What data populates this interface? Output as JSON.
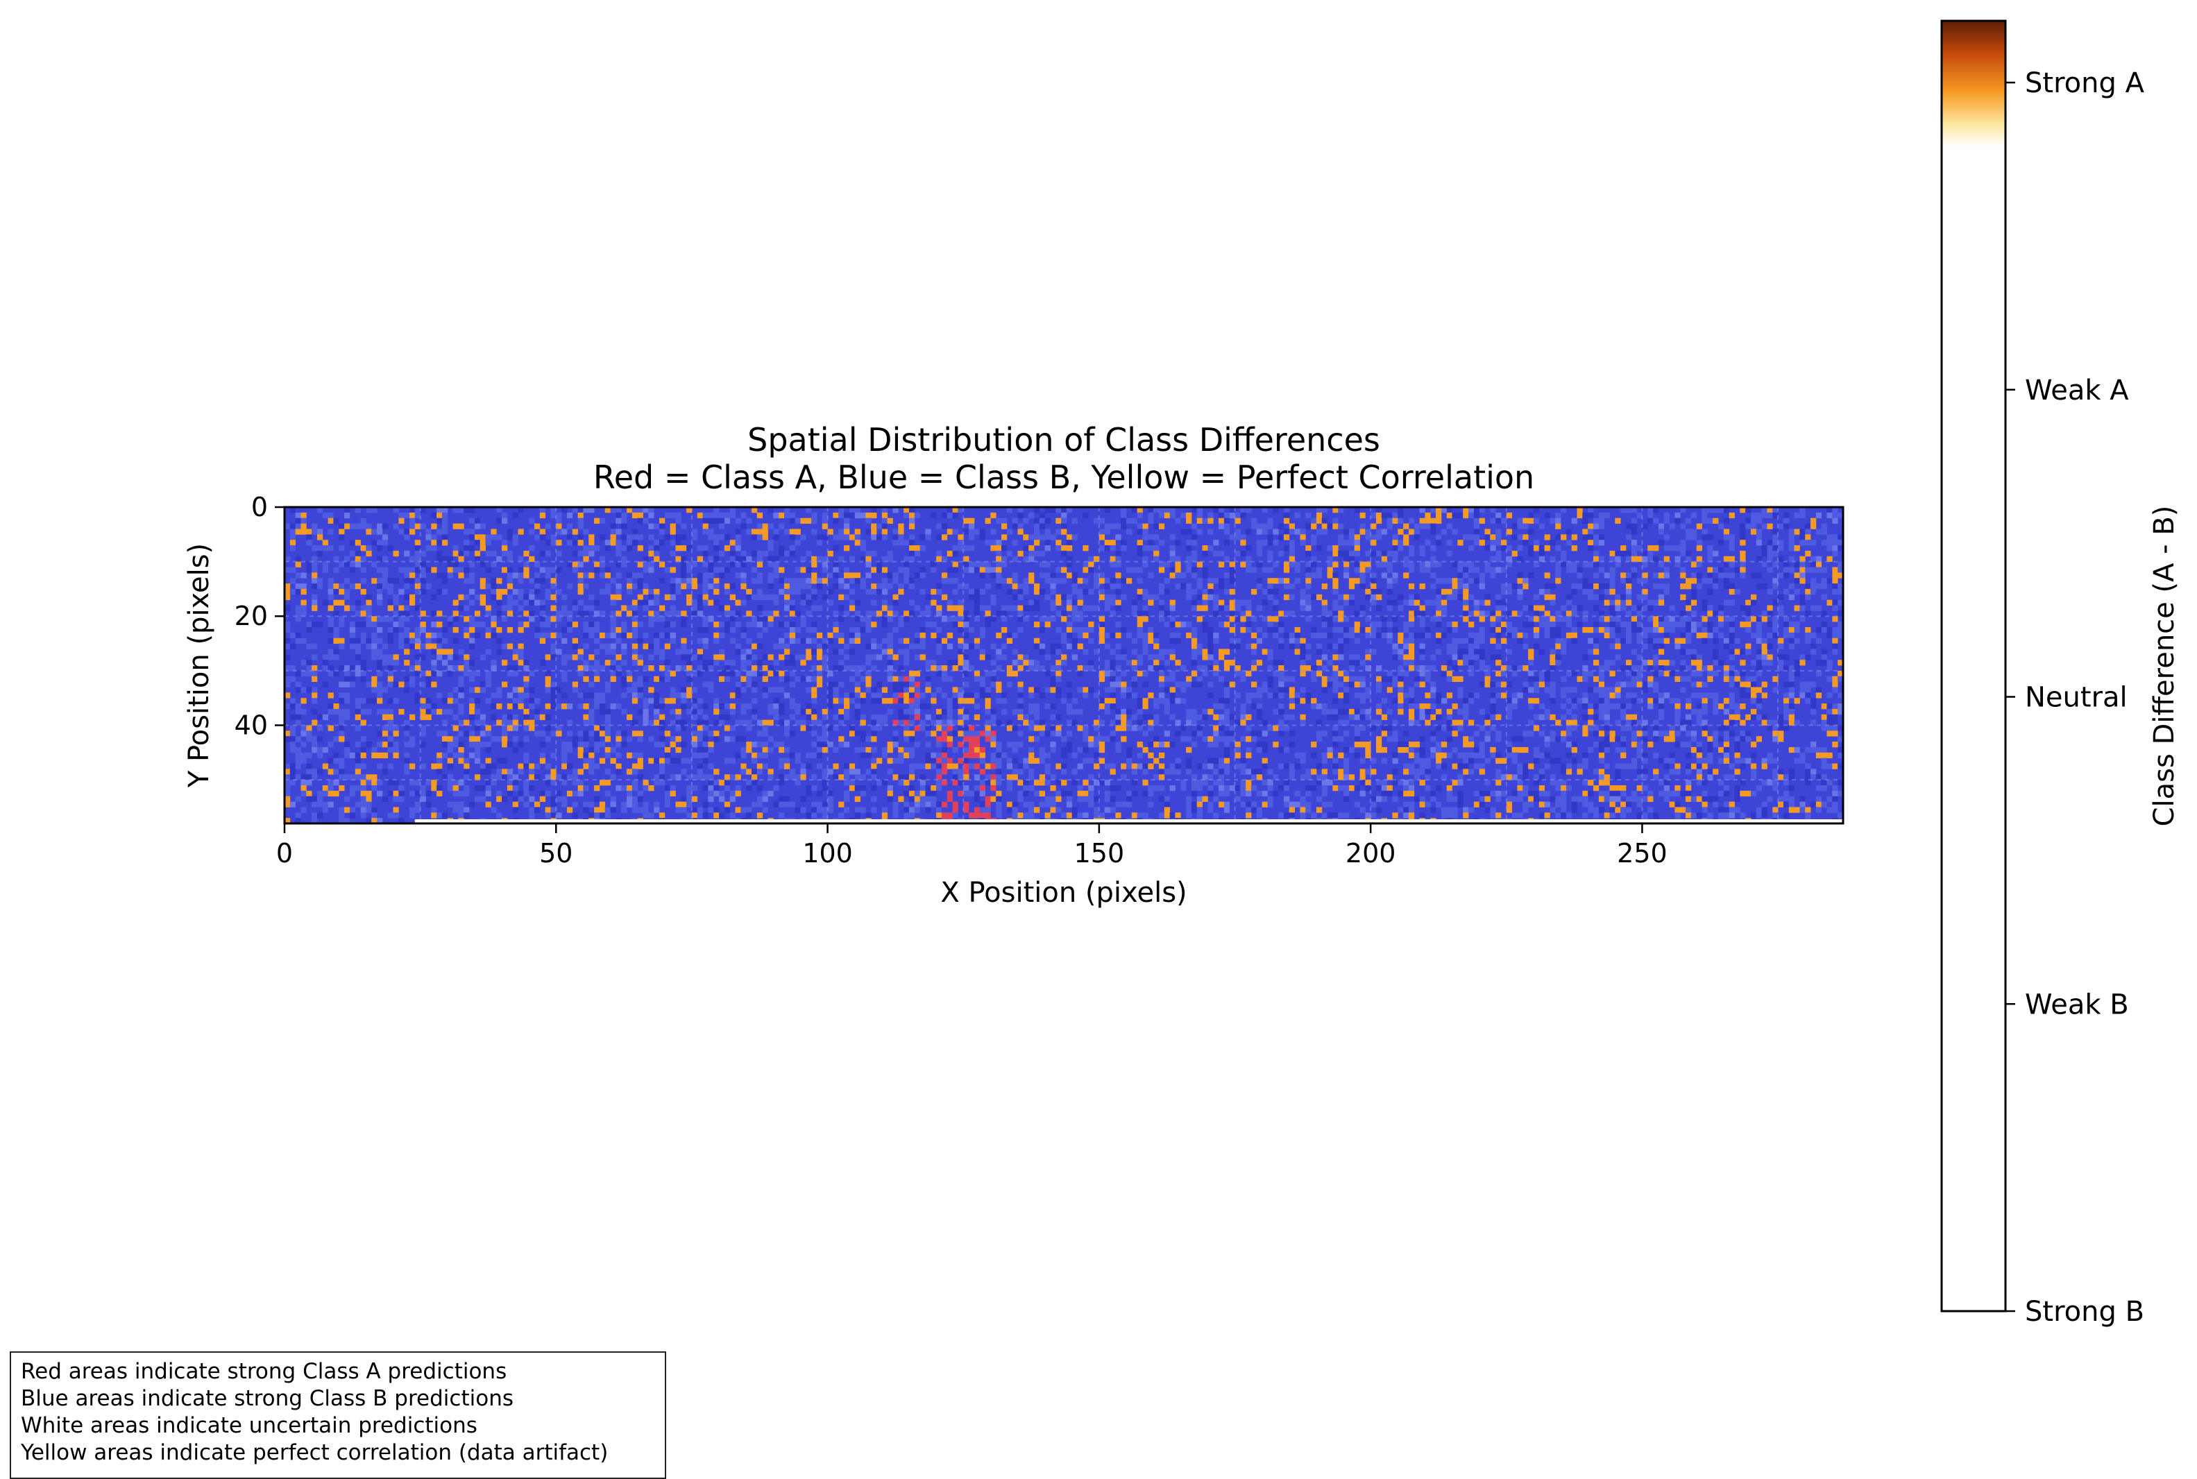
{
  "chart_data": {
    "type": "heatmap",
    "title": "Spatial Distribution of Class Differences",
    "subtitle": "Red = Class A, Blue = Class B, Yellow = Perfect Correlation",
    "xlabel": "X Position (pixels)",
    "ylabel": "Y Position (pixels)",
    "xlim": [
      0,
      287
    ],
    "ylim": [
      58,
      0
    ],
    "xticks": [
      0,
      50,
      100,
      150,
      200,
      250
    ],
    "yticks": [
      0,
      20,
      40
    ],
    "grid": true,
    "dominant_value_color": "#3d44d6",
    "hot_pixel_color": "#f59a23",
    "red_pixel_color": "#e0405a",
    "colorbar": {
      "label": "Class Difference (A - B)",
      "tick_labels": [
        "Strong A",
        "Weak A",
        "Neutral",
        "Weak B",
        "Strong B"
      ],
      "colors": [
        "#5c1d05",
        "#c4490b",
        "#f59a23",
        "#fde7a0",
        "#ffffff"
      ]
    },
    "notes": [
      "Red areas indicate strong Class A predictions",
      "Blue areas indicate strong Class B predictions",
      "White areas indicate uncertain predictions",
      "Yellow areas indicate perfect correlation (data artifact)"
    ]
  }
}
